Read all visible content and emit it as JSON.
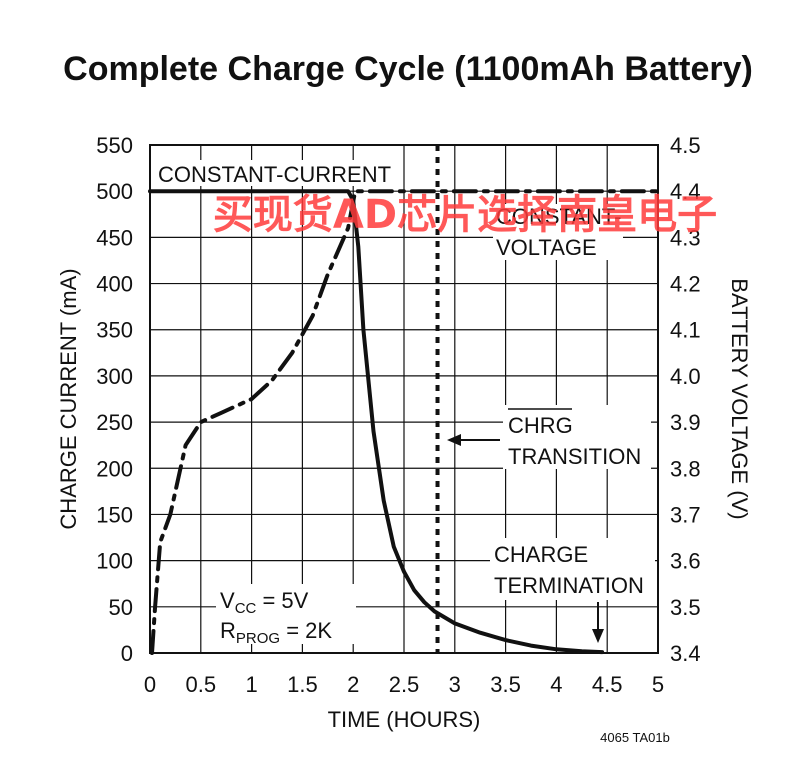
{
  "chart_data": {
    "type": "line",
    "title": "Complete Charge Cycle (1100mAh Battery)",
    "xlabel": "TIME (HOURS)",
    "ylabel_left": "CHARGE CURRENT (mA)",
    "ylabel_right": "BATTERY VOLTAGE (V)",
    "xlim": [
      0,
      5
    ],
    "ylim_left": [
      0,
      550
    ],
    "ylim_right": [
      3.4,
      4.5
    ],
    "x_ticks": [
      "0",
      "0.5",
      "1",
      "1.5",
      "2",
      "2.5",
      "3",
      "3.5",
      "4",
      "4.5",
      "5"
    ],
    "y_left_ticks": [
      "0",
      "50",
      "100",
      "150",
      "200",
      "250",
      "300",
      "350",
      "400",
      "450",
      "500",
      "550"
    ],
    "y_right_ticks": [
      "3.4",
      "3.5",
      "3.6",
      "3.7",
      "3.8",
      "3.9",
      "4.0",
      "4.1",
      "4.2",
      "4.3",
      "4.4",
      "4.5"
    ],
    "grid": true,
    "series": [
      {
        "axis": "left",
        "style": "solid",
        "points": [
          [
            0,
            500
          ],
          [
            1.95,
            500
          ],
          [
            2.0,
            490
          ],
          [
            2.05,
            440
          ],
          [
            2.1,
            350
          ],
          [
            2.2,
            240
          ],
          [
            2.3,
            165
          ],
          [
            2.4,
            115
          ],
          [
            2.5,
            88
          ],
          [
            2.6,
            68
          ],
          [
            2.7,
            55
          ],
          [
            2.8,
            45
          ],
          [
            3.0,
            32
          ],
          [
            3.25,
            22
          ],
          [
            3.5,
            14
          ],
          [
            3.75,
            8
          ],
          [
            4.0,
            4
          ],
          [
            4.25,
            2
          ],
          [
            4.45,
            1
          ]
        ]
      },
      {
        "axis": "right",
        "style": "dash-dot",
        "points": [
          [
            0.02,
            3.4
          ],
          [
            0.05,
            3.5
          ],
          [
            0.1,
            3.64
          ],
          [
            0.2,
            3.7
          ],
          [
            0.35,
            3.85
          ],
          [
            0.5,
            3.9
          ],
          [
            0.7,
            3.92
          ],
          [
            1.0,
            3.95
          ],
          [
            1.2,
            3.99
          ],
          [
            1.4,
            4.05
          ],
          [
            1.6,
            4.13
          ],
          [
            1.75,
            4.22
          ],
          [
            1.85,
            4.27
          ],
          [
            1.95,
            4.32
          ],
          [
            2.02,
            4.4
          ],
          [
            2.15,
            4.4
          ],
          [
            5.0,
            4.4
          ]
        ]
      }
    ],
    "markers": {
      "chrg_transition_x": 2.83,
      "charge_termination_x": 4.45
    },
    "annotations": {
      "constant_current": "CONSTANT-CURRENT",
      "constant_voltage_line1": "CONSTANT-",
      "constant_voltage_line2": "VOLTAGE",
      "chrg_line1": "CHRG",
      "chrg_line2": "TRANSITION",
      "term_line1": "CHARGE",
      "term_line2": "TERMINATION",
      "vcc_label": "V",
      "vcc_sub": "CC",
      "vcc_value": " = 5V",
      "rprog_label": "R",
      "rprog_sub": "PROG",
      "rprog_value": " = 2K"
    },
    "footnote": "4065 TA01b"
  },
  "watermark": "买现货AD芯片选择南皇电子",
  "colors": {
    "ink": "#111111",
    "watermark": "#ff3b3b"
  }
}
